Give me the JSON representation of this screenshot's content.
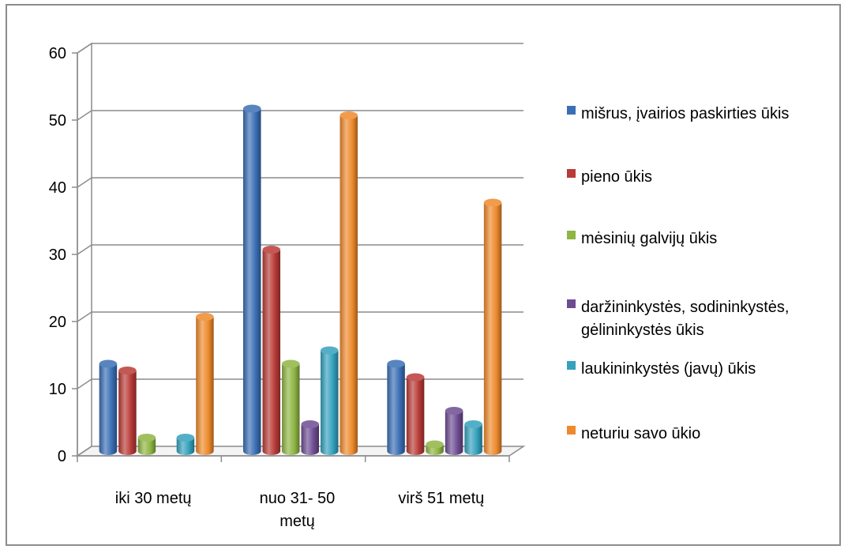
{
  "chart_data": {
    "type": "bar",
    "categories": [
      [
        "iki 30 metų"
      ],
      [
        "nuo 31- 50",
        "metų"
      ],
      [
        "virš 51 metų"
      ]
    ],
    "series": [
      {
        "name": "mišrus, įvairios paskirties ūkis",
        "values": [
          13,
          51,
          13
        ],
        "color": "#3a6fb5"
      },
      {
        "name": "pieno ūkis",
        "values": [
          12,
          30,
          11
        ],
        "color": "#b83b37"
      },
      {
        "name": "mėsinių galvijų ūkis",
        "values": [
          2,
          13,
          1
        ],
        "color": "#8fb543"
      },
      {
        "name": "daržininkystės, sodininkystės, gėlininkystės ūkis",
        "values": [
          0,
          4,
          6
        ],
        "color": "#6d4c92"
      },
      {
        "name": "laukininkystės (javų) ūkis",
        "values": [
          2,
          15,
          4
        ],
        "color": "#34a1bd"
      },
      {
        "name": "neturiu savo ūkio",
        "values": [
          20,
          50,
          37
        ],
        "color": "#ee8a2c"
      }
    ],
    "legend_lines": [
      [
        "mišrus, įvairios paskirties ūkis"
      ],
      [
        "pieno ūkis"
      ],
      [
        "mėsinių galvijų ūkis"
      ],
      [
        "daržininkystės, sodininkystės,",
        "gėlininkystės ūkis"
      ],
      [
        "laukininkystės (javų) ūkis"
      ],
      [
        " neturiu savo ūkio"
      ]
    ],
    "ylim": [
      0,
      60
    ],
    "yticks": [
      0,
      10,
      20,
      30,
      40,
      50,
      60
    ],
    "grid": true,
    "legend_position": "right",
    "style": "3d-cylinder"
  }
}
